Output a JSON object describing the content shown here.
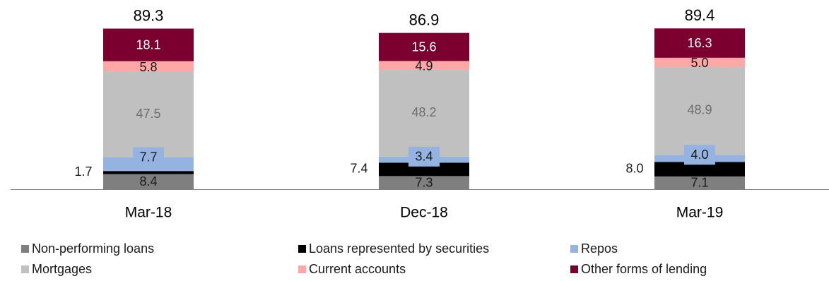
{
  "chart_data": {
    "type": "bar",
    "stacked": true,
    "categories": [
      "Mar-18",
      "Dec-18",
      "Mar-19"
    ],
    "totals": [
      "89.3",
      "86.9",
      "89.4"
    ],
    "ylim": [
      0,
      89.4
    ],
    "series": [
      {
        "name": "Non-performing loans",
        "color": "#7f7f7f",
        "values": [
          8.4,
          7.3,
          7.1
        ],
        "labels": [
          "8.4",
          "7.3",
          "7.1"
        ]
      },
      {
        "name": "Loans represented by securities",
        "color": "#000000",
        "values": [
          1.7,
          7.4,
          8.0
        ],
        "labels": [
          "1.7",
          "7.4",
          "8.0"
        ]
      },
      {
        "name": "Repos",
        "color": "#95b3e0",
        "values": [
          7.7,
          3.4,
          4.0
        ],
        "labels": [
          "7.7",
          "3.4",
          "4.0"
        ]
      },
      {
        "name": "Mortgages",
        "color": "#c0c0c0",
        "values": [
          47.5,
          48.2,
          48.9
        ],
        "labels": [
          "47.5",
          "48.2",
          "48.9"
        ]
      },
      {
        "name": "Current accounts",
        "color": "#ffa6a6",
        "values": [
          5.8,
          4.9,
          5.0
        ],
        "labels": [
          "5.8",
          "4.9",
          "5.0"
        ]
      },
      {
        "name": "Other forms of lending",
        "color": "#7b0030",
        "values": [
          18.1,
          15.6,
          16.3
        ],
        "labels": [
          "18.1",
          "15.6",
          "16.3"
        ]
      }
    ],
    "legend_position": "bottom",
    "grid": false
  }
}
